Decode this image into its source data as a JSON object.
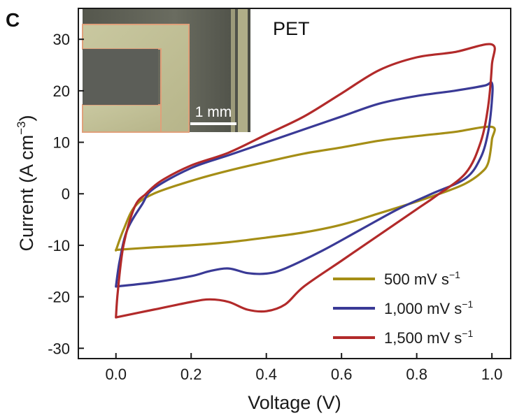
{
  "panel_label": "C",
  "chart_data": {
    "type": "line",
    "title": "",
    "annotation": "PET",
    "xlabel": "Voltage (V)",
    "ylabel": "Current (A cm",
    "ylabel_sup": "−3",
    "ylabel_close": ")",
    "xlim": [
      -0.1,
      1.05
    ],
    "ylim": [
      -32,
      36
    ],
    "xticks": [
      0.0,
      0.2,
      0.4,
      0.6,
      0.8,
      1.0
    ],
    "xtick_labels": [
      "0.0",
      "0.2",
      "0.4",
      "0.6",
      "0.8",
      "1.0"
    ],
    "yticks": [
      30,
      20,
      10,
      0,
      -10,
      -20,
      -30
    ],
    "ytick_labels": [
      "30",
      "20",
      "10",
      "0",
      "-10",
      "-20",
      "-30"
    ],
    "grid": false,
    "legend_position": "bottom-right",
    "inset": {
      "type": "micrograph",
      "scale_bar_label": "1 mm"
    },
    "series": [
      {
        "name": "500 mV s",
        "name_sup": "−1",
        "color": "#a58e16",
        "points": [
          [
            0.0,
            -11
          ],
          [
            0.02,
            -7
          ],
          [
            0.05,
            -2.5
          ],
          [
            0.1,
            0
          ],
          [
            0.2,
            2.5
          ],
          [
            0.3,
            4.5
          ],
          [
            0.4,
            6.2
          ],
          [
            0.5,
            7.8
          ],
          [
            0.6,
            9
          ],
          [
            0.7,
            10.3
          ],
          [
            0.8,
            11.2
          ],
          [
            0.9,
            12
          ],
          [
            1.0,
            13
          ],
          [
            1.0,
            10.5
          ],
          [
            0.99,
            6
          ],
          [
            0.97,
            4
          ],
          [
            0.93,
            2
          ],
          [
            0.88,
            0.5
          ],
          [
            0.8,
            -1.5
          ],
          [
            0.7,
            -3.8
          ],
          [
            0.6,
            -6
          ],
          [
            0.5,
            -7.5
          ],
          [
            0.4,
            -8.5
          ],
          [
            0.3,
            -9.4
          ],
          [
            0.2,
            -10
          ],
          [
            0.1,
            -10.4
          ],
          [
            0.0,
            -10.9
          ]
        ]
      },
      {
        "name": "1,000 mV s",
        "name_sup": "−1",
        "color": "#3a3a96",
        "points": [
          [
            0.0,
            -18
          ],
          [
            0.01,
            -13
          ],
          [
            0.03,
            -7
          ],
          [
            0.07,
            -2
          ],
          [
            0.1,
            1
          ],
          [
            0.2,
            5
          ],
          [
            0.3,
            7.5
          ],
          [
            0.4,
            10
          ],
          [
            0.5,
            12.5
          ],
          [
            0.6,
            15
          ],
          [
            0.7,
            17.5
          ],
          [
            0.8,
            19
          ],
          [
            0.9,
            20
          ],
          [
            0.98,
            21
          ],
          [
            1.0,
            21.5
          ],
          [
            1.0,
            18
          ],
          [
            0.99,
            12
          ],
          [
            0.97,
            7
          ],
          [
            0.93,
            3
          ],
          [
            0.84,
            0
          ],
          [
            0.75,
            -3
          ],
          [
            0.65,
            -7
          ],
          [
            0.55,
            -11
          ],
          [
            0.45,
            -14.5
          ],
          [
            0.4,
            -15.5
          ],
          [
            0.35,
            -15.4
          ],
          [
            0.3,
            -14.5
          ],
          [
            0.25,
            -15
          ],
          [
            0.2,
            -16
          ],
          [
            0.1,
            -17.2
          ],
          [
            0.0,
            -18
          ]
        ]
      },
      {
        "name": "1,500 mV s",
        "name_sup": "−1",
        "color": "#b22a2a",
        "points": [
          [
            0.0,
            -24
          ],
          [
            0.005,
            -19
          ],
          [
            0.02,
            -10
          ],
          [
            0.05,
            -2.5
          ],
          [
            0.08,
            0
          ],
          [
            0.12,
            2.5
          ],
          [
            0.2,
            5.5
          ],
          [
            0.3,
            8
          ],
          [
            0.4,
            11.5
          ],
          [
            0.5,
            15
          ],
          [
            0.6,
            19.5
          ],
          [
            0.7,
            24
          ],
          [
            0.8,
            26.5
          ],
          [
            0.9,
            27.5
          ],
          [
            1.0,
            29
          ],
          [
            1.0,
            25
          ],
          [
            0.99,
            17
          ],
          [
            0.97,
            10
          ],
          [
            0.93,
            4
          ],
          [
            0.85,
            -0.5
          ],
          [
            0.8,
            -3
          ],
          [
            0.7,
            -8
          ],
          [
            0.6,
            -13
          ],
          [
            0.5,
            -18
          ],
          [
            0.45,
            -21.5
          ],
          [
            0.4,
            -22.8
          ],
          [
            0.35,
            -22.5
          ],
          [
            0.3,
            -21
          ],
          [
            0.25,
            -20.5
          ],
          [
            0.2,
            -21
          ],
          [
            0.1,
            -22.5
          ],
          [
            0.0,
            -24
          ]
        ]
      }
    ]
  }
}
